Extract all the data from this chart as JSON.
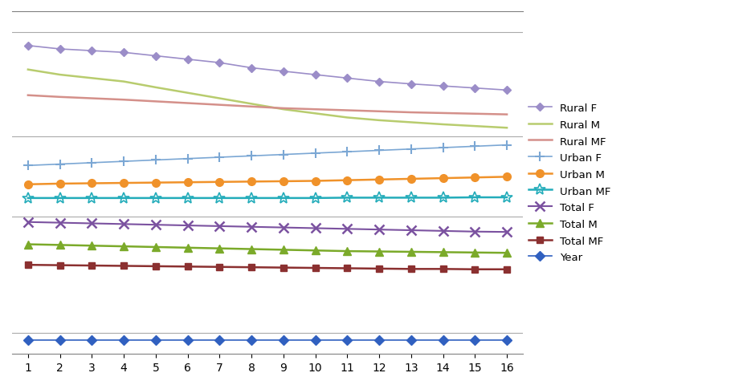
{
  "x": [
    1,
    2,
    3,
    4,
    5,
    6,
    7,
    8,
    9,
    10,
    11,
    12,
    13,
    14,
    15,
    16
  ],
  "series": {
    "Rural F": [
      9.0,
      8.9,
      8.85,
      8.8,
      8.7,
      8.6,
      8.5,
      8.35,
      8.25,
      8.15,
      8.05,
      7.95,
      7.88,
      7.82,
      7.76,
      7.7
    ],
    "Rural M": [
      8.3,
      8.15,
      8.05,
      7.95,
      7.78,
      7.62,
      7.46,
      7.3,
      7.14,
      7.02,
      6.9,
      6.82,
      6.76,
      6.7,
      6.65,
      6.6
    ],
    "Rural MF": [
      7.55,
      7.5,
      7.46,
      7.42,
      7.37,
      7.32,
      7.27,
      7.22,
      7.17,
      7.14,
      7.11,
      7.08,
      7.05,
      7.03,
      7.01,
      6.99
    ],
    "Urban F": [
      5.5,
      5.54,
      5.58,
      5.62,
      5.66,
      5.7,
      5.74,
      5.78,
      5.82,
      5.86,
      5.9,
      5.94,
      5.98,
      6.02,
      6.06,
      6.1
    ],
    "Urban M": [
      4.95,
      4.97,
      4.98,
      4.99,
      5.0,
      5.01,
      5.02,
      5.03,
      5.04,
      5.05,
      5.07,
      5.09,
      5.11,
      5.13,
      5.15,
      5.17
    ],
    "Urban MF": [
      4.55,
      4.55,
      4.55,
      4.55,
      4.55,
      4.55,
      4.55,
      4.55,
      4.55,
      4.55,
      4.56,
      4.56,
      4.56,
      4.56,
      4.57,
      4.57
    ],
    "Total F": [
      3.85,
      3.83,
      3.81,
      3.79,
      3.77,
      3.75,
      3.73,
      3.71,
      3.69,
      3.67,
      3.65,
      3.63,
      3.61,
      3.59,
      3.57,
      3.56
    ],
    "Total M": [
      3.2,
      3.18,
      3.16,
      3.14,
      3.12,
      3.1,
      3.08,
      3.06,
      3.04,
      3.02,
      3.0,
      2.99,
      2.98,
      2.97,
      2.96,
      2.95
    ],
    "Total MF": [
      2.6,
      2.59,
      2.58,
      2.57,
      2.56,
      2.55,
      2.54,
      2.53,
      2.52,
      2.51,
      2.5,
      2.49,
      2.48,
      2.48,
      2.47,
      2.47
    ],
    "Year": [
      0.4,
      0.4,
      0.4,
      0.4,
      0.4,
      0.4,
      0.4,
      0.4,
      0.4,
      0.4,
      0.4,
      0.4,
      0.4,
      0.4,
      0.4,
      0.4
    ]
  },
  "colors": {
    "Rural F": "#9B8DC8",
    "Rural M": "#B8CC6E",
    "Rural MF": "#D4908A",
    "Urban F": "#7BA7D4",
    "Urban M": "#F0922A",
    "Urban MF": "#23ACBA",
    "Total F": "#7B52A0",
    "Total M": "#7BAA2A",
    "Total MF": "#8B3030",
    "Year": "#3060C0"
  },
  "markers": {
    "Rural F": "D",
    "Rural M": "None",
    "Rural MF": "None",
    "Urban F": "+",
    "Urban M": "o",
    "Urban MF": "*",
    "Total F": "x",
    "Total M": "^",
    "Total MF": "s",
    "Year": "D"
  },
  "marker_sizes": {
    "Rural F": 5,
    "Rural M": 4,
    "Rural MF": 4,
    "Urban F": 8,
    "Urban M": 7,
    "Urban MF": 10,
    "Total F": 8,
    "Total M": 7,
    "Total MF": 6,
    "Year": 6
  },
  "line_widths": {
    "Rural F": 1.2,
    "Rural M": 1.8,
    "Rural MF": 1.8,
    "Urban F": 1.2,
    "Urban M": 1.8,
    "Urban MF": 1.8,
    "Total F": 1.5,
    "Total M": 1.8,
    "Total MF": 1.8,
    "Year": 1.2
  },
  "xlim": [
    0.5,
    16.5
  ],
  "ylim": [
    0.0,
    10.0
  ],
  "xticks": [
    1,
    2,
    3,
    4,
    5,
    6,
    7,
    8,
    9,
    10,
    11,
    12,
    13,
    14,
    15,
    16
  ],
  "background_color": "#FFFFFF",
  "legend_order": [
    "Rural F",
    "Rural M",
    "Rural MF",
    "Urban F",
    "Urban M",
    "Urban MF",
    "Total F",
    "Total M",
    "Total MF",
    "Year"
  ]
}
